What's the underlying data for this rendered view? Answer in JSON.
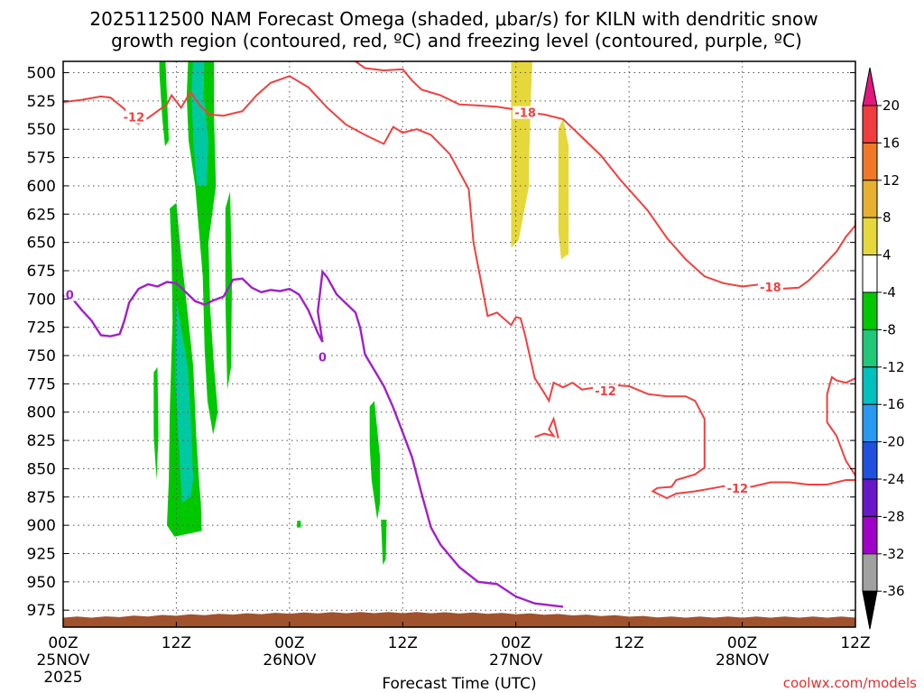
{
  "chart_data": {
    "type": "heatmap",
    "title_line1": "2025112500 NAM Forecast Omega (shaded, μbar/s) for KILN with dendritic snow",
    "title_line2": "growth region (contoured, red, ºC) and freezing level (contoured, purple, ºC)",
    "xlabel": "Forecast Time (UTC)",
    "credit": "coolwx.com/models",
    "x_range_hours": [
      0,
      84
    ],
    "x_ticks": [
      {
        "h": 0,
        "label": "00Z",
        "date": "25NOV",
        "year": "2025"
      },
      {
        "h": 12,
        "label": "12Z",
        "date": "",
        "year": ""
      },
      {
        "h": 24,
        "label": "00Z",
        "date": "26NOV",
        "year": ""
      },
      {
        "h": 36,
        "label": "12Z",
        "date": "",
        "year": ""
      },
      {
        "h": 48,
        "label": "00Z",
        "date": "27NOV",
        "year": ""
      },
      {
        "h": 60,
        "label": "12Z",
        "date": "",
        "year": ""
      },
      {
        "h": 72,
        "label": "00Z",
        "date": "28NOV",
        "year": ""
      },
      {
        "h": 84,
        "label": "12Z",
        "date": "",
        "year": ""
      }
    ],
    "y_range_hPa": [
      490,
      990
    ],
    "y_ticks": [
      "500",
      "525",
      "550",
      "575",
      "600",
      "625",
      "650",
      "675",
      "700",
      "725",
      "750",
      "775",
      "800",
      "825",
      "850",
      "875",
      "900",
      "925",
      "950",
      "975"
    ],
    "colorbar": {
      "labels": [
        "20",
        "16",
        "12",
        "8",
        "4",
        "-4",
        "-8",
        "-12",
        "-16",
        "-20",
        "-24",
        "-28",
        "-32",
        "-36"
      ],
      "colors": [
        "#f03c3c",
        "#f07828",
        "#e8b030",
        "#e6d83a",
        "#ffffff",
        "#00c800",
        "#20c878",
        "#00c0c0",
        "#2898f0",
        "#2050e0",
        "#6818c8",
        "#a000c8",
        "#a0a0a0"
      ],
      "top_arrow_color": "#e0187c",
      "bottom_arrow_color": "#000000"
    },
    "contour_labels": [
      {
        "text": "-12",
        "h": 7.5,
        "p": 540,
        "color": "#f04040"
      },
      {
        "text": "-18",
        "h": 49,
        "p": 536,
        "color": "#f04040"
      },
      {
        "text": "-18",
        "h": 75,
        "p": 690,
        "color": "#f04040"
      },
      {
        "text": "-12",
        "h": 57.5,
        "p": 782,
        "color": "#f04040"
      },
      {
        "text": "-12",
        "h": 71.5,
        "p": 868,
        "color": "#f04040"
      },
      {
        "text": "0",
        "h": 0.7,
        "p": 697,
        "color": "#a020c8"
      },
      {
        "text": "0",
        "h": 27.5,
        "p": 752,
        "color": "#a020c8"
      }
    ],
    "dgz_minus12_upper": [
      [
        0,
        526
      ],
      [
        2,
        524
      ],
      [
        4,
        521
      ],
      [
        5,
        522
      ],
      [
        6.5,
        532
      ],
      [
        7,
        542
      ],
      [
        8,
        545
      ],
      [
        9,
        540
      ],
      [
        10,
        534
      ],
      [
        11,
        528
      ],
      [
        11.5,
        520
      ],
      [
        12.5,
        531
      ],
      [
        13.5,
        517
      ],
      [
        14.5,
        529
      ],
      [
        15.5,
        537
      ],
      [
        17,
        538
      ],
      [
        19,
        534
      ],
      [
        20.5,
        520
      ],
      [
        22,
        509
      ],
      [
        24,
        503
      ],
      [
        26,
        513
      ],
      [
        28,
        531
      ],
      [
        30,
        546
      ],
      [
        32,
        555
      ],
      [
        34,
        563
      ],
      [
        35,
        548
      ],
      [
        36,
        553
      ],
      [
        37.5,
        550
      ],
      [
        39,
        555
      ],
      [
        41,
        572
      ],
      [
        43,
        603
      ],
      [
        43.5,
        650
      ],
      [
        44.5,
        693
      ],
      [
        45,
        715
      ],
      [
        46,
        712
      ],
      [
        47.5,
        723
      ],
      [
        48,
        716
      ],
      [
        48.5,
        717
      ],
      [
        49,
        733
      ],
      [
        50,
        770
      ],
      [
        51,
        783
      ],
      [
        51.5,
        790
      ],
      [
        52,
        774
      ],
      [
        53,
        778
      ],
      [
        54,
        774
      ],
      [
        55,
        780
      ],
      [
        56.5,
        778
      ],
      [
        58,
        776
      ],
      [
        60,
        777
      ],
      [
        62,
        784
      ],
      [
        64,
        786
      ],
      [
        66,
        786
      ],
      [
        67,
        790
      ],
      [
        68,
        806
      ],
      [
        68,
        833
      ],
      [
        68,
        849
      ],
      [
        67,
        855
      ],
      [
        65,
        860
      ],
      [
        64.5,
        866
      ],
      [
        63,
        867
      ],
      [
        62.5,
        870
      ],
      [
        64,
        876
      ],
      [
        65,
        872
      ],
      [
        67,
        870
      ],
      [
        69,
        867
      ],
      [
        71,
        864
      ],
      [
        73,
        866
      ],
      [
        75,
        862
      ],
      [
        77,
        862
      ],
      [
        79,
        864
      ],
      [
        81,
        864
      ],
      [
        83,
        860
      ],
      [
        84,
        860
      ]
    ],
    "dgz_minus18": [
      [
        31,
        490
      ],
      [
        32,
        496
      ],
      [
        34,
        498
      ],
      [
        36,
        497
      ],
      [
        37,
        507
      ],
      [
        38,
        515
      ],
      [
        40,
        520
      ],
      [
        42,
        528
      ],
      [
        44,
        529
      ],
      [
        46,
        530
      ],
      [
        47.5,
        532
      ],
      [
        49,
        535
      ],
      [
        51,
        537
      ],
      [
        53,
        541
      ],
      [
        55,
        557
      ],
      [
        57,
        573
      ],
      [
        59,
        594
      ],
      [
        62,
        622
      ],
      [
        64,
        646
      ],
      [
        66,
        665
      ],
      [
        68,
        680
      ],
      [
        70,
        686
      ],
      [
        72,
        689
      ],
      [
        74,
        687
      ],
      [
        76,
        691
      ],
      [
        78,
        690
      ],
      [
        79,
        684
      ],
      [
        80,
        676
      ],
      [
        82,
        658
      ],
      [
        83,
        645
      ],
      [
        84,
        635
      ],
      [
        84,
        630
      ]
    ],
    "dgz_minus12_right": [
      [
        84,
        856
      ],
      [
        83,
        843
      ],
      [
        82,
        821
      ],
      [
        81,
        809
      ],
      [
        81,
        784
      ],
      [
        81.5,
        769
      ],
      [
        82,
        772
      ],
      [
        83,
        774
      ],
      [
        84,
        770
      ]
    ],
    "dgz_minus12_small": [
      [
        50,
        822
      ],
      [
        51,
        819
      ],
      [
        52,
        821
      ],
      [
        51.5,
        815
      ],
      [
        52,
        806
      ],
      [
        52.5,
        823
      ]
    ],
    "freezing_level": [
      [
        0,
        697
      ],
      [
        1,
        700
      ],
      [
        2,
        710
      ],
      [
        3,
        719
      ],
      [
        4,
        732
      ],
      [
        5,
        733
      ],
      [
        6,
        731
      ],
      [
        6.5,
        719
      ],
      [
        7,
        703
      ],
      [
        8,
        691
      ],
      [
        9,
        687
      ],
      [
        10,
        689
      ],
      [
        11,
        685
      ],
      [
        12,
        686
      ],
      [
        13,
        694
      ],
      [
        14,
        702
      ],
      [
        15,
        705
      ],
      [
        16,
        701
      ],
      [
        17,
        698
      ],
      [
        18,
        683
      ],
      [
        19,
        682
      ],
      [
        20,
        690
      ],
      [
        21,
        694
      ],
      [
        22,
        692
      ],
      [
        23,
        693
      ],
      [
        24,
        691
      ],
      [
        25,
        696
      ],
      [
        26,
        710
      ],
      [
        27,
        730
      ],
      [
        27.5,
        738
      ],
      [
        27,
        711
      ],
      [
        27.5,
        676
      ],
      [
        28,
        681
      ],
      [
        29,
        696
      ],
      [
        30,
        704
      ],
      [
        31,
        712
      ],
      [
        31.5,
        726
      ],
      [
        32,
        749
      ],
      [
        33,
        763
      ],
      [
        34,
        777
      ],
      [
        35,
        796
      ],
      [
        36,
        818
      ],
      [
        37,
        840
      ],
      [
        38,
        872
      ],
      [
        39,
        902
      ],
      [
        40,
        917
      ],
      [
        42,
        937
      ],
      [
        44,
        950
      ],
      [
        46,
        952
      ],
      [
        48,
        963
      ],
      [
        50,
        969
      ],
      [
        52,
        971
      ],
      [
        53,
        972
      ]
    ],
    "omega_regions": [
      {
        "c": "#00c800",
        "pts": [
          [
            10.2,
            480
          ],
          [
            10.8,
            480
          ],
          [
            11,
            520
          ],
          [
            11.2,
            560
          ],
          [
            10.8,
            565
          ],
          [
            10.5,
            540
          ],
          [
            10.2,
            500
          ]
        ]
      },
      {
        "c": "#00c800",
        "pts": [
          [
            13.3,
            480
          ],
          [
            16,
            480
          ],
          [
            16,
            540
          ],
          [
            16.2,
            600
          ],
          [
            15.4,
            650
          ],
          [
            15.6,
            710
          ],
          [
            16,
            760
          ],
          [
            16.4,
            800
          ],
          [
            15.9,
            820
          ],
          [
            15.3,
            790
          ],
          [
            15,
            745
          ],
          [
            14.8,
            680
          ],
          [
            14.4,
            640
          ],
          [
            14,
            600
          ],
          [
            13.3,
            560
          ],
          [
            13.1,
            520
          ]
        ]
      },
      {
        "c": "#00c8a0",
        "pts": [
          [
            13.8,
            480
          ],
          [
            15,
            480
          ],
          [
            14.9,
            520
          ],
          [
            15.4,
            560
          ],
          [
            15.2,
            600
          ],
          [
            14.2,
            600
          ],
          [
            13.8,
            560
          ],
          [
            13.6,
            520
          ]
        ]
      },
      {
        "c": "#00c800",
        "pts": [
          [
            11.3,
            620
          ],
          [
            12,
            615
          ],
          [
            12.5,
            660
          ],
          [
            13.3,
            720
          ],
          [
            13.8,
            760
          ],
          [
            14.1,
            820
          ],
          [
            14.4,
            860
          ],
          [
            14.6,
            880
          ],
          [
            14.7,
            905
          ],
          [
            11.8,
            910
          ],
          [
            11,
            900
          ],
          [
            11.2,
            860
          ],
          [
            11.3,
            800
          ],
          [
            11.6,
            720
          ],
          [
            11.5,
            660
          ]
        ]
      },
      {
        "c": "#00c8a0",
        "pts": [
          [
            12,
            700
          ],
          [
            12.6,
            730
          ],
          [
            13.2,
            760
          ],
          [
            13.5,
            800
          ],
          [
            13.8,
            860
          ],
          [
            13.5,
            875
          ],
          [
            12.6,
            880
          ],
          [
            12.2,
            820
          ],
          [
            11.9,
            770
          ]
        ]
      },
      {
        "c": "#00c800",
        "pts": [
          [
            17.2,
            620
          ],
          [
            17.7,
            605
          ],
          [
            17.9,
            680
          ],
          [
            17.8,
            760
          ],
          [
            17.4,
            780
          ],
          [
            17.2,
            700
          ]
        ]
      },
      {
        "c": "#00c800",
        "pts": [
          [
            9.6,
            765
          ],
          [
            10,
            760
          ],
          [
            10.1,
            820
          ],
          [
            9.9,
            860
          ],
          [
            9.6,
            820
          ]
        ]
      },
      {
        "c": "#00c800",
        "pts": [
          [
            32.5,
            795
          ],
          [
            33,
            790
          ],
          [
            33.6,
            840
          ],
          [
            33.6,
            880
          ],
          [
            33.3,
            895
          ],
          [
            32.7,
            860
          ],
          [
            32.5,
            830
          ]
        ]
      },
      {
        "c": "#00c800",
        "pts": [
          [
            33.7,
            895
          ],
          [
            34.3,
            895
          ],
          [
            34.2,
            930
          ],
          [
            33.9,
            935
          ]
        ]
      },
      {
        "c": "#00c800",
        "pts": [
          [
            24.8,
            896
          ],
          [
            25.2,
            896
          ],
          [
            25.2,
            902
          ],
          [
            24.8,
            902
          ]
        ]
      },
      {
        "c": "#e6d83a",
        "pts": [
          [
            47.5,
            480
          ],
          [
            49.8,
            480
          ],
          [
            49.6,
            520
          ],
          [
            49.4,
            580
          ],
          [
            49.4,
            600
          ],
          [
            48.3,
            648
          ],
          [
            47.5,
            655
          ],
          [
            47.5,
            600
          ],
          [
            47.5,
            560
          ]
        ]
      },
      {
        "c": "#e6d83a",
        "pts": [
          [
            52.5,
            550
          ],
          [
            53,
            540
          ],
          [
            53.6,
            565
          ],
          [
            53.6,
            660
          ],
          [
            52.8,
            665
          ],
          [
            52.5,
            640
          ],
          [
            52.5,
            600
          ]
        ]
      }
    ]
  }
}
